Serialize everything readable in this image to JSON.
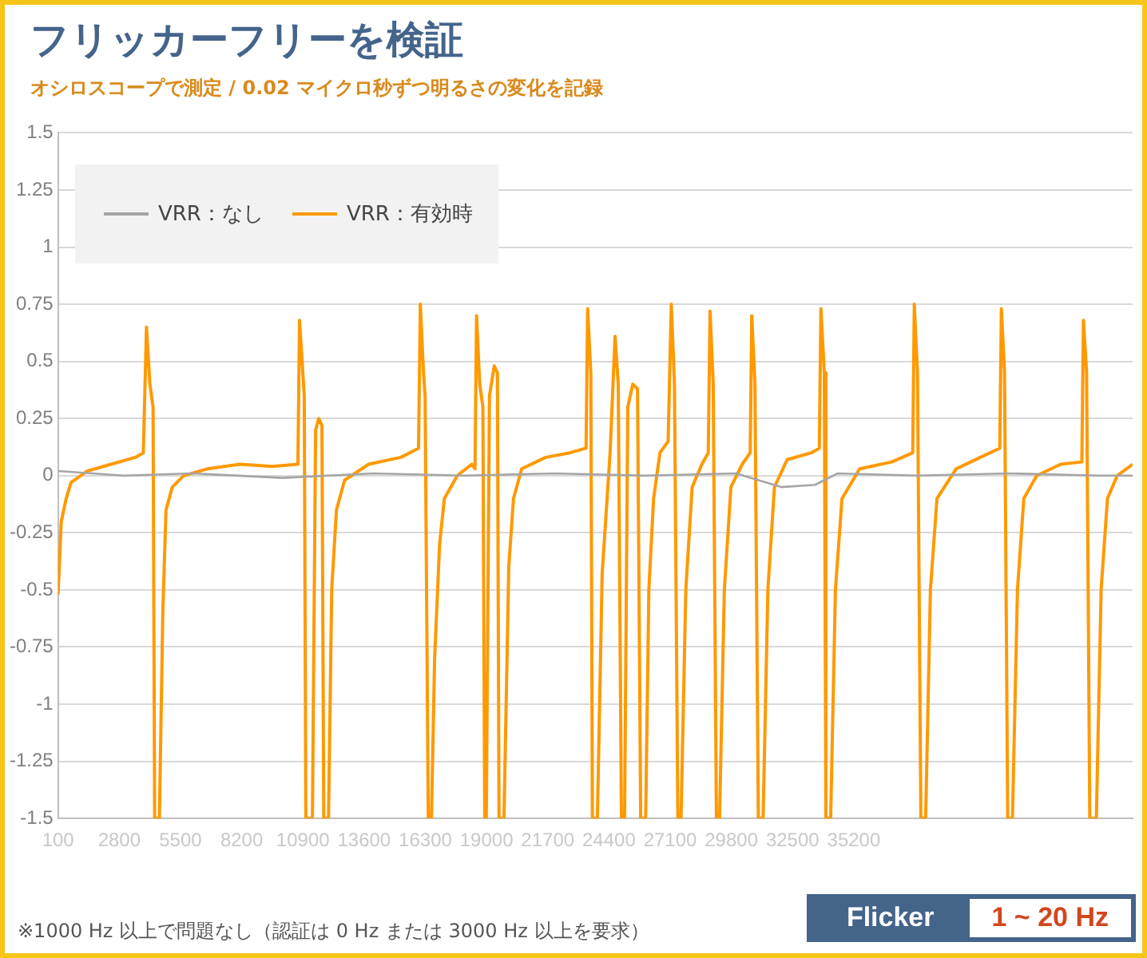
{
  "chart_data": {
    "type": "line",
    "title": "フリッカーフリーを検証",
    "subtitle": "オシロスコープで測定 / 0.02 マイクロ秒ずつ明るさの変化を記録",
    "annotations": [
      "※1000 Hz 以上で問題なし（認証は 0 Hz または 3000 Hz 以上を要求）",
      "Flicker",
      "1 ~ 20 Hz"
    ],
    "xlim": [
      100,
      47500
    ],
    "xticks": [
      100,
      2800,
      5500,
      8200,
      10900,
      13600,
      16300,
      19000,
      21700,
      24400,
      27100,
      29800,
      32500,
      35200
    ],
    "ylim": [
      -1.5,
      1.5
    ],
    "yticks": [
      -1.5,
      -1.25,
      -1,
      -0.75,
      -0.5,
      -0.25,
      0,
      0.25,
      0.5,
      0.75,
      1,
      1.25,
      1.5
    ],
    "grid": "y",
    "legend": "top left",
    "marker": "none",
    "line_style": "solid",
    "series": [
      {
        "name": "VRR：なし",
        "color": "#a5a5a5",
        "x": [
          100,
          3000,
          6000,
          10000,
          14000,
          18000,
          22000,
          26000,
          30000,
          32000,
          33500,
          34500,
          38000,
          42000,
          46000,
          47500
        ],
        "values": [
          0.02,
          0,
          0.01,
          -0.01,
          0.01,
          0,
          0.01,
          0,
          0.01,
          -0.05,
          -0.04,
          0.01,
          0,
          0.01,
          0,
          0
        ]
      },
      {
        "name": "VRR：有効時",
        "color": "#ff9900",
        "x": [
          100,
          240,
          460,
          670,
          1380,
          2440,
          3510,
          3860,
          4000,
          4150,
          4290,
          4360,
          4570,
          4720,
          4860,
          5140,
          5640,
          6700,
          8120,
          9540,
          10680,
          10750,
          10960,
          11030,
          11320,
          11460,
          11600,
          11740,
          11820,
          12030,
          12170,
          12380,
          12740,
          13800,
          15220,
          16000,
          16080,
          16220,
          16290,
          16430,
          16570,
          16710,
          16930,
          17140,
          17710,
          18350,
          18490,
          18560,
          18700,
          18840,
          18920,
          18990,
          19130,
          19340,
          19480,
          19550,
          19770,
          19980,
          20190,
          20550,
          21610,
          22680,
          23390,
          23460,
          23600,
          23670,
          23890,
          24100,
          24450,
          24670,
          24810,
          24950,
          25090,
          25230,
          25450,
          25660,
          25800,
          26020,
          26160,
          26370,
          26650,
          27010,
          27150,
          27290,
          27440,
          27580,
          27790,
          28070,
          28500,
          28780,
          28860,
          29000,
          29140,
          29280,
          29490,
          29780,
          30280,
          30630,
          30700,
          30840,
          30990,
          31200,
          31410,
          31700,
          32260,
          33330,
          33680,
          33750,
          33900,
          33970,
          34180,
          34390,
          34680,
          35460,
          36880,
          37800,
          37870,
          38010,
          38160,
          38370,
          38580,
          38870,
          39720,
          40780,
          41640,
          41710,
          41850,
          41990,
          42200,
          42420,
          42700,
          43270,
          44330,
          45260,
          45330,
          45470,
          45610,
          45900,
          46110,
          46390,
          46820,
          47500
        ],
        "values": [
          -0.52,
          -0.2,
          -0.1,
          -0.03,
          0.02,
          0.05,
          0.08,
          0.1,
          0.65,
          0.4,
          0.3,
          -1.5,
          -1.5,
          -0.6,
          -0.15,
          -0.05,
          0,
          0.03,
          0.05,
          0.04,
          0.05,
          0.68,
          0.35,
          -1.5,
          -1.5,
          0.2,
          0.25,
          0.22,
          -1.5,
          -1.5,
          -0.5,
          -0.15,
          -0.02,
          0.05,
          0.08,
          0.12,
          0.75,
          0.45,
          0.35,
          -1.5,
          -1.5,
          -0.8,
          -0.3,
          -0.1,
          0,
          0.05,
          0.03,
          0.7,
          0.4,
          0.3,
          -1.5,
          -1.5,
          0.35,
          0.48,
          0.45,
          -1.5,
          -1.5,
          -0.4,
          -0.1,
          0.03,
          0.08,
          0.1,
          0.12,
          0.73,
          0.45,
          -1.5,
          -1.5,
          -0.43,
          0.1,
          0.61,
          0.4,
          -1.5,
          -1.5,
          0.3,
          0.4,
          0.38,
          -1.5,
          -1.5,
          -0.5,
          -0.1,
          0.1,
          0.15,
          0.75,
          0.4,
          -1.5,
          -1.5,
          -0.5,
          -0.05,
          0.05,
          0.1,
          0.72,
          0.4,
          -1.5,
          -1.5,
          -0.5,
          -0.05,
          0.05,
          0.1,
          0.7,
          0.4,
          -1.5,
          -1.5,
          -0.5,
          -0.05,
          0.07,
          0.1,
          0.12,
          0.73,
          0.45,
          -1.5,
          -1.5,
          -0.5,
          -0.1,
          0.03,
          0.06,
          0.1,
          0.75,
          0.45,
          -1.5,
          -1.5,
          -0.5,
          -0.1,
          0.03,
          0.08,
          0.12,
          0.73,
          0.45,
          -1.5,
          -1.5,
          -0.5,
          -0.1,
          0,
          0.05,
          0.06,
          0.68,
          0.45,
          -1.5,
          -1.5,
          -0.5,
          -0.1,
          0,
          0.05
        ]
      }
    ]
  }
}
